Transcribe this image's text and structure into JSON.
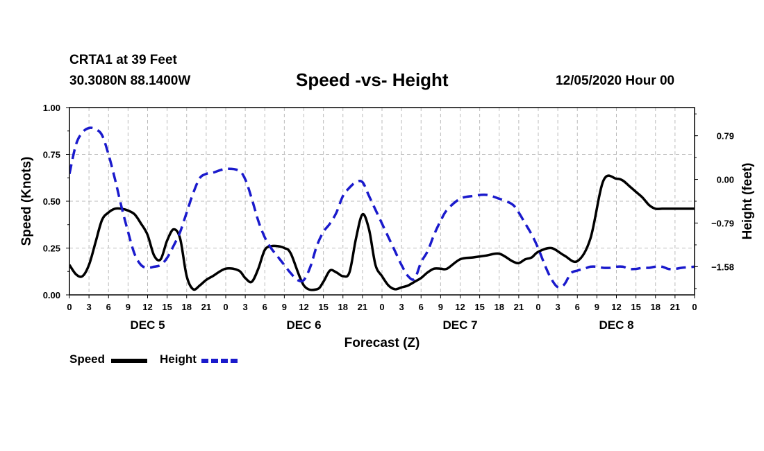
{
  "header": {
    "station": "CRTA1 at 39 Feet",
    "coordinates": "30.3080N 88.1400W",
    "title": "Speed -vs- Height",
    "datetime": "12/05/2020 Hour 00"
  },
  "colors": {
    "speed": "#000000",
    "height": "#1a1acc",
    "grid": "#bbbbbb"
  },
  "legend": {
    "speed": "Speed",
    "height": "Height"
  },
  "chart_data": {
    "type": "line",
    "title": "Speed -vs- Height",
    "xlabel": "Forecast (Z)",
    "ylabel": "Speed (Knots)",
    "y2label": "Height (feet)",
    "x_range_hours": [
      0,
      96
    ],
    "ylim": [
      0,
      1
    ],
    "y2lim": [
      -2.09,
      1.3
    ],
    "grid": true,
    "legend_position": "bottom-left",
    "x_tick_labels": [
      "0",
      "3",
      "6",
      "9",
      "12",
      "15",
      "18",
      "21",
      "0",
      "3",
      "6",
      "9",
      "12",
      "15",
      "18",
      "21",
      "0",
      "3",
      "6",
      "9",
      "12",
      "15",
      "18",
      "21",
      "0",
      "3",
      "6",
      "9",
      "12",
      "15",
      "18",
      "21",
      "0"
    ],
    "day_labels": [
      {
        "label": "DEC 5",
        "hour": 12
      },
      {
        "label": "DEC 6",
        "hour": 36
      },
      {
        "label": "DEC 7",
        "hour": 60
      },
      {
        "label": "DEC 8",
        "hour": 84
      }
    ],
    "y_tick_labels": [
      "0.00",
      "0.25",
      "0.50",
      "0.75",
      "1.00"
    ],
    "y_ticks": [
      0,
      0.25,
      0.5,
      0.75,
      1.0
    ],
    "y2_tick_labels": [
      "0.79",
      "0.00",
      "−0.79",
      "−1.58"
    ],
    "y2_ticks": [
      0.79,
      0.0,
      -0.79,
      -1.58
    ],
    "series": [
      {
        "name": "Speed",
        "axis": "left",
        "hours": [
          0,
          1,
          2,
          3,
          4,
          5,
          6,
          7,
          8,
          9,
          10,
          11,
          12,
          13,
          14,
          15,
          16,
          17,
          18,
          19,
          20,
          21,
          22,
          24,
          26,
          27,
          28,
          29,
          30,
          31,
          32,
          33,
          34,
          36,
          38,
          39,
          40,
          41,
          42,
          43,
          44,
          45,
          46,
          47,
          48,
          49,
          50,
          51,
          52,
          53,
          54,
          55,
          56,
          57,
          58,
          60,
          62,
          64,
          66,
          68,
          69,
          70,
          71,
          72,
          74,
          76,
          78,
          80,
          82,
          84,
          85,
          86,
          87,
          88,
          89,
          90,
          91,
          92,
          94,
          96
        ],
        "values": [
          0.16,
          0.11,
          0.1,
          0.16,
          0.28,
          0.4,
          0.44,
          0.46,
          0.46,
          0.45,
          0.43,
          0.38,
          0.32,
          0.21,
          0.19,
          0.29,
          0.35,
          0.3,
          0.1,
          0.03,
          0.05,
          0.08,
          0.1,
          0.14,
          0.13,
          0.09,
          0.07,
          0.14,
          0.24,
          0.26,
          0.26,
          0.25,
          0.22,
          0.05,
          0.03,
          0.07,
          0.13,
          0.12,
          0.1,
          0.12,
          0.3,
          0.43,
          0.35,
          0.16,
          0.1,
          0.05,
          0.03,
          0.04,
          0.05,
          0.07,
          0.09,
          0.12,
          0.14,
          0.14,
          0.14,
          0.19,
          0.2,
          0.21,
          0.22,
          0.18,
          0.17,
          0.19,
          0.2,
          0.23,
          0.25,
          0.21,
          0.18,
          0.3,
          0.61,
          0.62,
          0.61,
          0.58,
          0.55,
          0.52,
          0.48,
          0.46,
          0.46,
          0.46,
          0.46,
          0.46
        ]
      },
      {
        "name": "Height",
        "axis": "right",
        "hours": [
          0,
          1,
          2,
          3,
          4,
          5,
          6,
          7,
          8,
          9,
          10,
          11,
          12,
          13,
          14,
          15,
          16,
          17,
          18,
          19,
          20,
          21,
          22,
          24,
          26,
          27,
          28,
          29,
          30,
          31,
          32,
          33,
          34,
          35,
          36,
          37,
          38,
          39,
          40,
          41,
          42,
          43,
          44,
          45,
          46,
          47,
          48,
          49,
          50,
          51,
          52,
          53,
          54,
          55,
          56,
          57,
          58,
          60,
          62,
          64,
          66,
          68,
          69,
          70,
          71,
          72,
          73,
          74,
          75,
          76,
          77,
          78,
          79,
          80,
          81,
          82,
          83,
          84,
          85,
          86,
          87,
          88,
          89,
          90,
          91,
          92,
          93,
          94,
          95,
          96
        ],
        "values": [
          0.1,
          0.63,
          0.85,
          0.93,
          0.91,
          0.8,
          0.45,
          0.0,
          -0.5,
          -0.95,
          -1.35,
          -1.55,
          -1.6,
          -1.58,
          -1.55,
          -1.42,
          -1.2,
          -0.95,
          -0.6,
          -0.25,
          0.02,
          0.1,
          0.12,
          0.19,
          0.16,
          0.0,
          -0.35,
          -0.75,
          -1.05,
          -1.25,
          -1.4,
          -1.55,
          -1.7,
          -1.82,
          -1.82,
          -1.58,
          -1.2,
          -0.95,
          -0.8,
          -0.6,
          -0.3,
          -0.15,
          -0.05,
          -0.05,
          -0.3,
          -0.55,
          -0.8,
          -1.05,
          -1.3,
          -1.55,
          -1.75,
          -1.8,
          -1.5,
          -1.3,
          -1.0,
          -0.75,
          -0.55,
          -0.35,
          -0.3,
          -0.28,
          -0.35,
          -0.45,
          -0.6,
          -0.8,
          -1.0,
          -1.25,
          -1.55,
          -1.8,
          -1.95,
          -1.9,
          -1.7,
          -1.65,
          -1.62,
          -1.58,
          -1.58,
          -1.6,
          -1.6,
          -1.58,
          -1.58,
          -1.62,
          -1.62,
          -1.6,
          -1.6,
          -1.58,
          -1.58,
          -1.62,
          -1.62,
          -1.6,
          -1.59,
          -1.58
        ]
      }
    ]
  }
}
